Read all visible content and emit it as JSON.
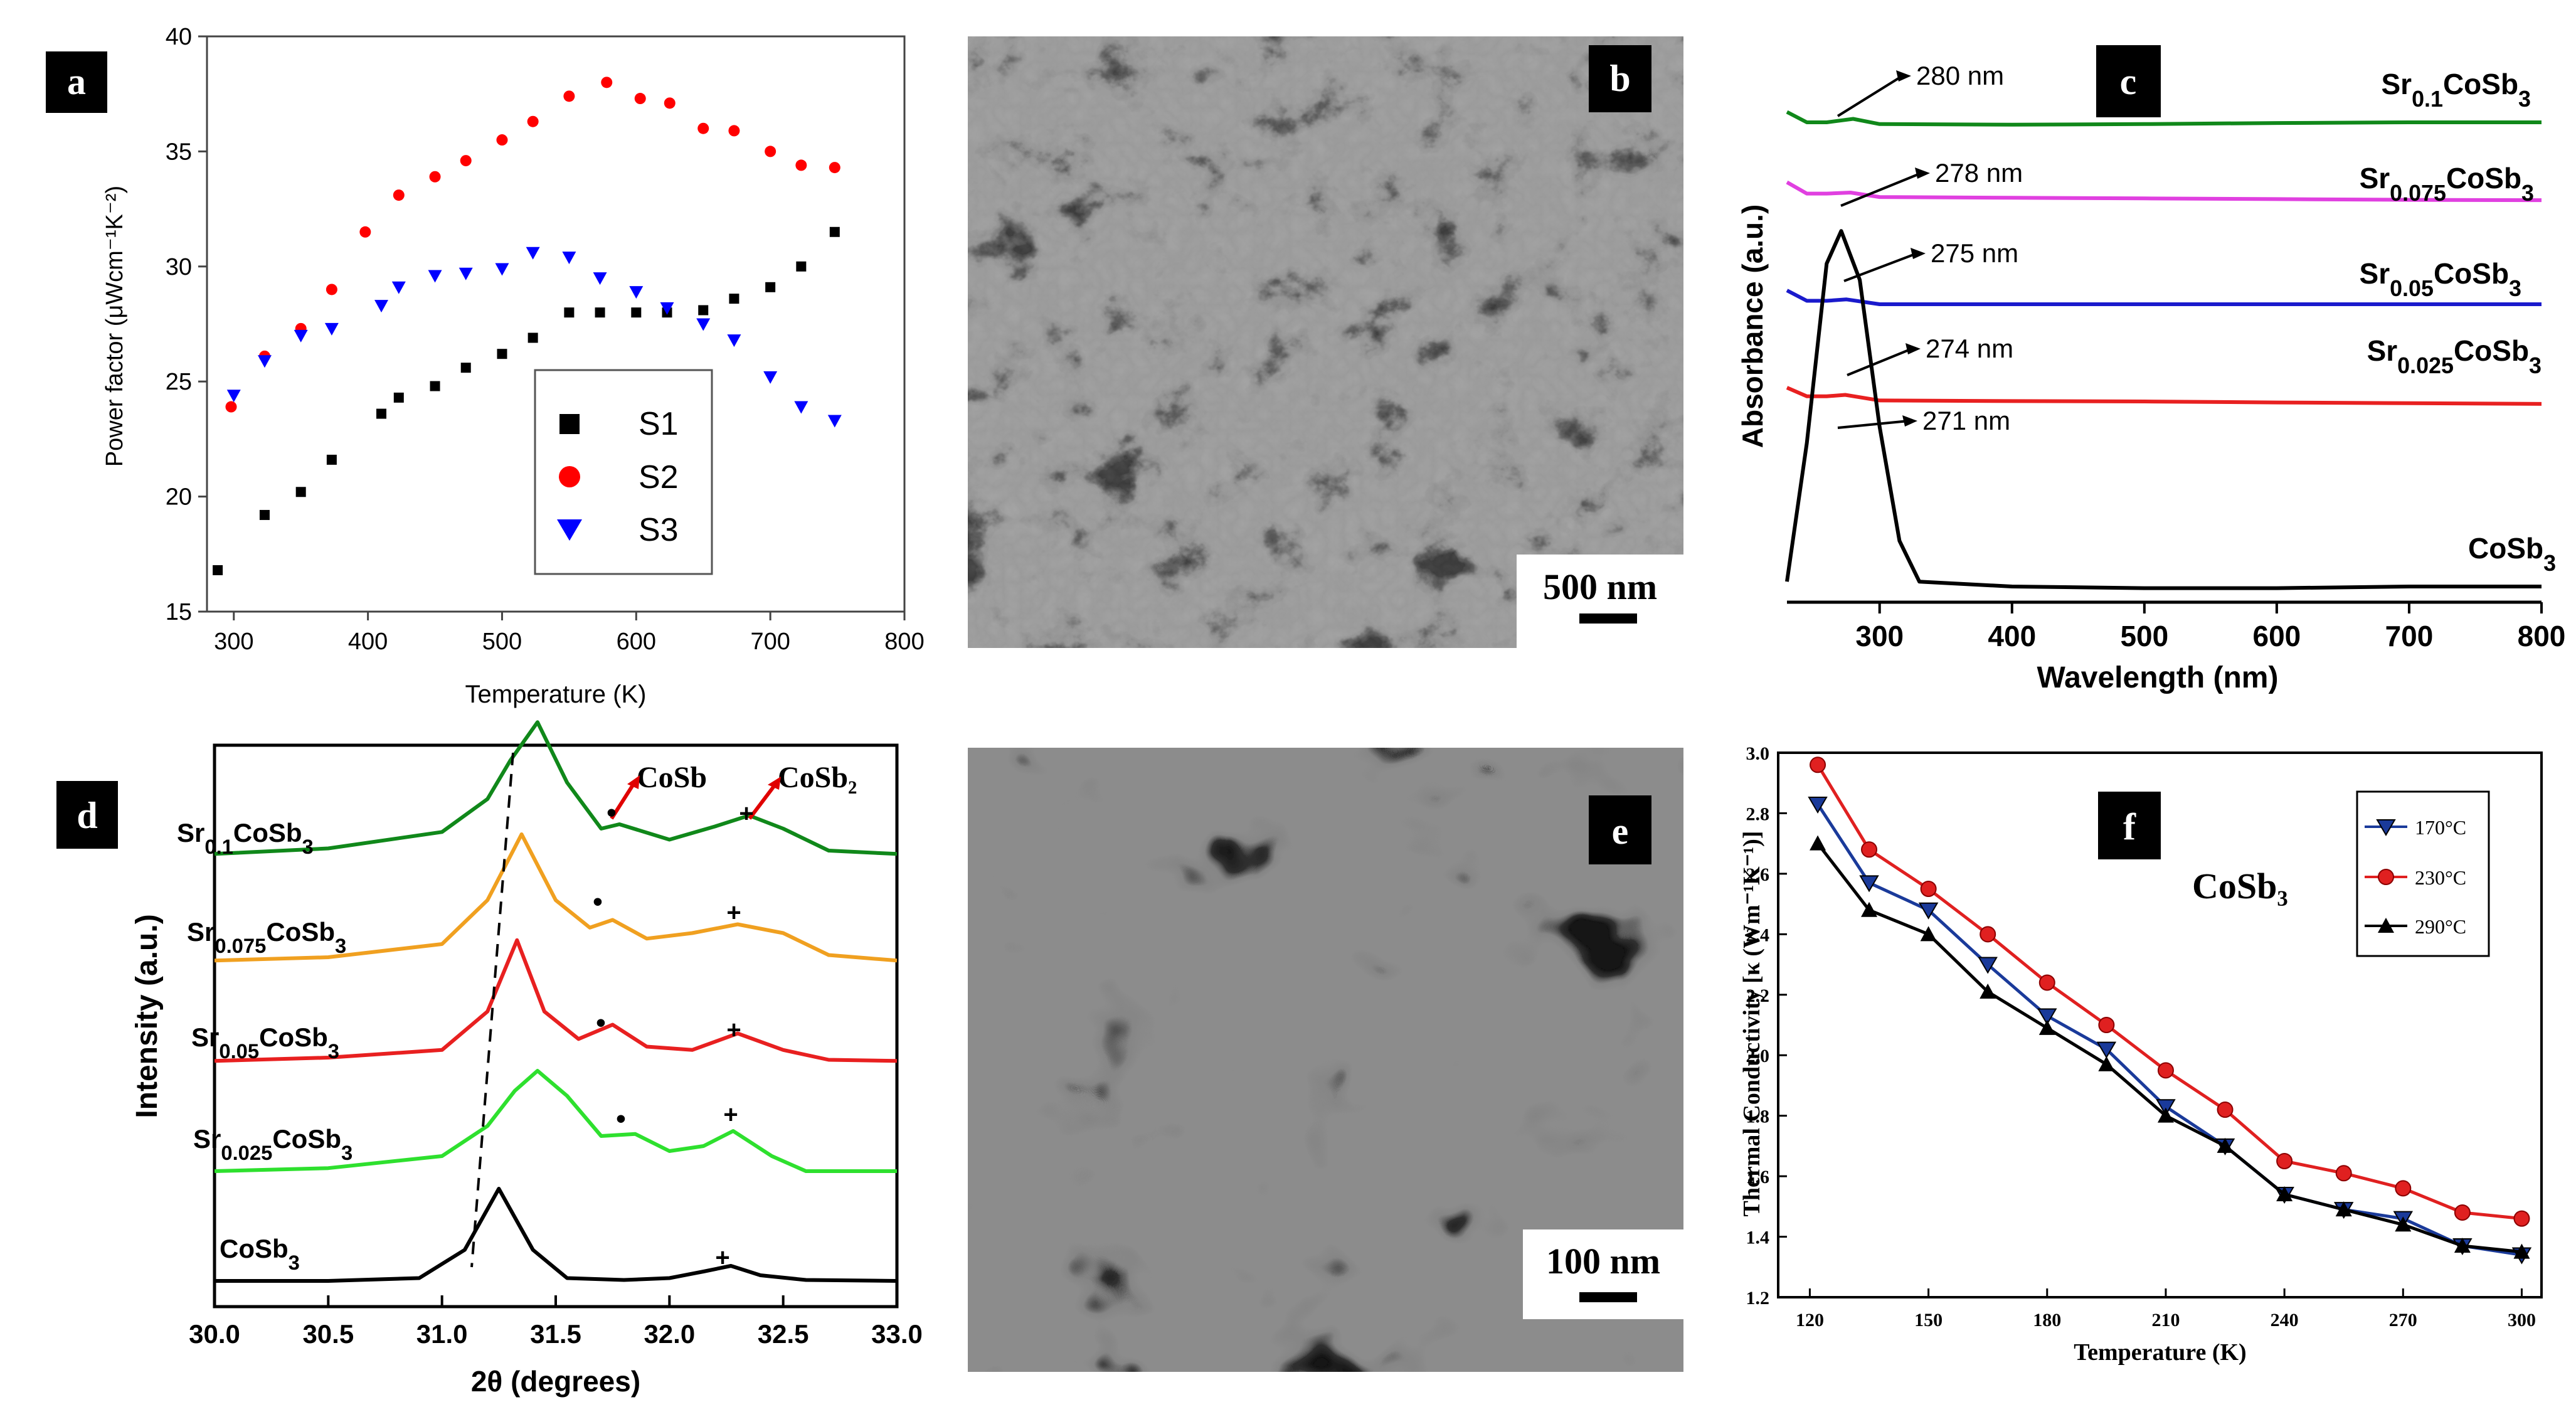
{
  "chart_data": [
    {
      "panel": "a",
      "type": "scatter",
      "xlabel": "Temperature (K)",
      "ylabel": "Power factor (μWcm⁻¹K⁻²)",
      "xlim": [
        280,
        800
      ],
      "ylim": [
        15,
        40
      ],
      "xticks": [
        "300",
        "400",
        "500",
        "600",
        "700",
        "800"
      ],
      "yticks": [
        "15",
        "20",
        "25",
        "30",
        "35",
        "40"
      ],
      "legend_position": "center",
      "series": [
        {
          "name": "S1",
          "marker": "square",
          "color": "#000000",
          "x": [
            288,
            323,
            350,
            373,
            410,
            423,
            450,
            473,
            500,
            523,
            550,
            573,
            600,
            623,
            650,
            673,
            700,
            723,
            748
          ],
          "y": [
            16.8,
            19.2,
            20.2,
            21.6,
            23.6,
            24.3,
            24.8,
            25.6,
            26.2,
            26.9,
            28.0,
            28.0,
            28.0,
            28.0,
            28.1,
            28.6,
            29.1,
            30.0,
            31.5
          ]
        },
        {
          "name": "S2",
          "marker": "circle",
          "color": "#ff0000",
          "x": [
            298,
            323,
            350,
            373,
            398,
            423,
            450,
            473,
            500,
            523,
            550,
            578,
            603,
            625,
            650,
            673,
            700,
            723,
            748
          ],
          "y": [
            23.9,
            26.1,
            27.3,
            29.0,
            31.5,
            33.1,
            33.9,
            34.6,
            35.5,
            36.3,
            37.4,
            38.0,
            37.3,
            37.1,
            36.0,
            35.9,
            35.0,
            34.4,
            34.3
          ]
        },
        {
          "name": "S3",
          "marker": "triangle-down",
          "color": "#0000ff",
          "x": [
            300,
            323,
            350,
            373,
            410,
            423,
            450,
            473,
            500,
            523,
            550,
            573,
            600,
            623,
            650,
            673,
            700,
            723,
            748
          ],
          "y": [
            24.4,
            25.9,
            27.0,
            27.3,
            28.3,
            29.1,
            29.6,
            29.7,
            29.9,
            30.6,
            30.4,
            29.5,
            28.9,
            28.2,
            27.5,
            26.8,
            25.2,
            23.9,
            23.3
          ]
        }
      ]
    },
    {
      "panel": "c",
      "type": "line",
      "xlabel": "Wavelength (nm)",
      "ylabel": "Absorbance (a.u.)",
      "xlim": [
        230,
        800
      ],
      "xticks": [
        "300",
        "400",
        "500",
        "600",
        "700",
        "800"
      ],
      "series": [
        {
          "name": "Sr0.1CoSb3",
          "color": "#10881a",
          "peak_label": "280 nm",
          "x": [
            230,
            245,
            260,
            280,
            300,
            400,
            500,
            600,
            700,
            800
          ],
          "y": [
            6.4,
            6.1,
            6.1,
            6.2,
            6.05,
            6.03,
            6.05,
            6.08,
            6.1,
            6.1
          ]
        },
        {
          "name": "Sr0.075CoSb3",
          "color": "#e040e0",
          "peak_label": "278 nm",
          "x": [
            230,
            245,
            260,
            278,
            300,
            400,
            500,
            600,
            700,
            800
          ],
          "y": [
            5.05,
            4.72,
            4.72,
            4.75,
            4.62,
            4.6,
            4.58,
            4.56,
            4.54,
            4.53
          ]
        },
        {
          "name": "Sr0.05CoSb3",
          "color": "#1a1acc",
          "peak_label": "275 nm",
          "x": [
            230,
            245,
            260,
            275,
            300,
            400,
            500,
            600,
            700,
            800
          ],
          "y": [
            3.9,
            3.6,
            3.6,
            3.64,
            3.5,
            3.5,
            3.5,
            3.5,
            3.5,
            3.5
          ]
        },
        {
          "name": "Sr0.025CoSb3",
          "color": "#e82020",
          "peak_label": "274 nm",
          "x": [
            230,
            245,
            260,
            274,
            300,
            400,
            500,
            600,
            700,
            800
          ],
          "y": [
            2.95,
            2.7,
            2.7,
            2.74,
            2.58,
            2.56,
            2.55,
            2.52,
            2.5,
            2.48
          ]
        },
        {
          "name": "CoSb3",
          "color": "#000000",
          "peak_label": "271 nm",
          "x": [
            230,
            245,
            260,
            271,
            285,
            300,
            315,
            330,
            400,
            500,
            600,
            700,
            800
          ],
          "y": [
            0.05,
            0.9,
            2.0,
            2.2,
            1.9,
            1.0,
            0.3,
            0.05,
            0.02,
            0.01,
            0.01,
            0.02,
            0.02
          ]
        }
      ]
    },
    {
      "panel": "d",
      "type": "line",
      "xlabel": "2θ (degrees)",
      "ylabel": "Intensity (a.u.)",
      "xlim": [
        30.0,
        33.0
      ],
      "xticks": [
        "30.0",
        "30.5",
        "31.0",
        "31.5",
        "32.0",
        "32.5",
        "33.0"
      ],
      "annotations": [
        "CoSb",
        "CoSb₂",
        "•",
        "+"
      ],
      "series": [
        {
          "name": "Sr0.1CoSb3",
          "color": "#10881a",
          "peak": 31.42,
          "x": [
            30.0,
            30.5,
            31.0,
            31.2,
            31.3,
            31.42,
            31.55,
            31.7,
            31.78,
            32.0,
            32.2,
            32.35,
            32.5,
            32.7,
            33.0
          ],
          "y": [
            0.05,
            0.1,
            0.25,
            0.55,
            0.9,
            1.25,
            0.7,
            0.28,
            0.32,
            0.18,
            0.3,
            0.4,
            0.28,
            0.08,
            0.05
          ]
        },
        {
          "name": "Sr0.075CoSb3",
          "color": "#f0a020",
          "peak": 31.35,
          "x": [
            30.0,
            30.5,
            31.0,
            31.2,
            31.35,
            31.5,
            31.65,
            31.75,
            31.9,
            32.1,
            32.3,
            32.5,
            32.7,
            33.0
          ],
          "y": [
            0.05,
            0.08,
            0.2,
            0.6,
            1.2,
            0.6,
            0.35,
            0.42,
            0.25,
            0.3,
            0.38,
            0.3,
            0.1,
            0.05
          ]
        },
        {
          "name": "Sr0.05CoSb3",
          "color": "#e82020",
          "peak": 31.33,
          "x": [
            30.0,
            30.5,
            31.0,
            31.2,
            31.33,
            31.45,
            31.6,
            31.75,
            31.9,
            32.1,
            32.3,
            32.5,
            32.7,
            33.0
          ],
          "y": [
            0.05,
            0.08,
            0.15,
            0.5,
            1.15,
            0.5,
            0.25,
            0.38,
            0.18,
            0.15,
            0.3,
            0.15,
            0.06,
            0.05
          ]
        },
        {
          "name": "Sr0.025CoSb3",
          "color": "#2ee02e",
          "peak": 31.42,
          "x": [
            30.0,
            30.5,
            31.0,
            31.2,
            31.32,
            31.42,
            31.55,
            31.7,
            31.85,
            32.0,
            32.15,
            32.28,
            32.45,
            32.6,
            33.0
          ],
          "y": [
            0.05,
            0.08,
            0.2,
            0.5,
            0.85,
            1.05,
            0.8,
            0.4,
            0.42,
            0.25,
            0.3,
            0.45,
            0.2,
            0.05,
            0.05
          ]
        },
        {
          "name": "CoSb3",
          "color": "#000000",
          "peak": 31.25,
          "x": [
            30.0,
            30.5,
            30.9,
            31.1,
            31.25,
            31.4,
            31.55,
            31.8,
            32.0,
            32.15,
            32.27,
            32.4,
            32.6,
            33.0
          ],
          "y": [
            0.02,
            0.02,
            0.05,
            0.35,
            1.0,
            0.35,
            0.05,
            0.03,
            0.05,
            0.12,
            0.18,
            0.08,
            0.03,
            0.02
          ]
        }
      ]
    },
    {
      "panel": "f",
      "type": "line",
      "title": "CoSb₃",
      "xlabel": "Temperature (K)",
      "ylabel": "Thermal Conductivity [κ (Wm⁻¹K⁻¹)]",
      "xlim": [
        112,
        305
      ],
      "ylim": [
        1.2,
        3.0
      ],
      "xticks": [
        "120",
        "150",
        "180",
        "210",
        "240",
        "270",
        "300"
      ],
      "yticks": [
        "1.2",
        "1.4",
        "1.6",
        "1.8",
        "2.0",
        "2.2",
        "2.4",
        "2.6",
        "2.8",
        "3.0"
      ],
      "legend_position": "top-right",
      "x": [
        122,
        135,
        150,
        165,
        180,
        195,
        210,
        225,
        240,
        255,
        270,
        285,
        300
      ],
      "series": [
        {
          "name": "170°C",
          "marker": "triangle-down",
          "color": "#1a3a9a",
          "y": [
            2.83,
            2.57,
            2.48,
            2.3,
            2.13,
            2.02,
            1.83,
            1.7,
            1.54,
            1.49,
            1.46,
            1.37,
            1.34
          ]
        },
        {
          "name": "230°C",
          "marker": "circle",
          "color": "#e02020",
          "y": [
            2.96,
            2.68,
            2.55,
            2.4,
            2.24,
            2.1,
            1.95,
            1.82,
            1.65,
            1.61,
            1.56,
            1.48,
            1.46
          ]
        },
        {
          "name": "290°C",
          "marker": "triangle-up",
          "color": "#000000",
          "y": [
            2.7,
            2.48,
            2.4,
            2.21,
            2.09,
            1.97,
            1.8,
            1.7,
            1.54,
            1.49,
            1.44,
            1.37,
            1.35
          ]
        }
      ]
    }
  ],
  "panels": {
    "a": {
      "letter": "a"
    },
    "b": {
      "letter": "b",
      "scale_bar": "500 nm"
    },
    "c": {
      "letter": "c"
    },
    "d": {
      "letter": "d"
    },
    "e": {
      "letter": "e",
      "scale_bar": "100 nm"
    },
    "f": {
      "letter": "f"
    }
  },
  "colors": {
    "s1": "#000000",
    "s2": "#ff0000",
    "s3": "#0000ff",
    "panel_label_bg": "#000000",
    "sem_gray": "#8a8a8a"
  }
}
